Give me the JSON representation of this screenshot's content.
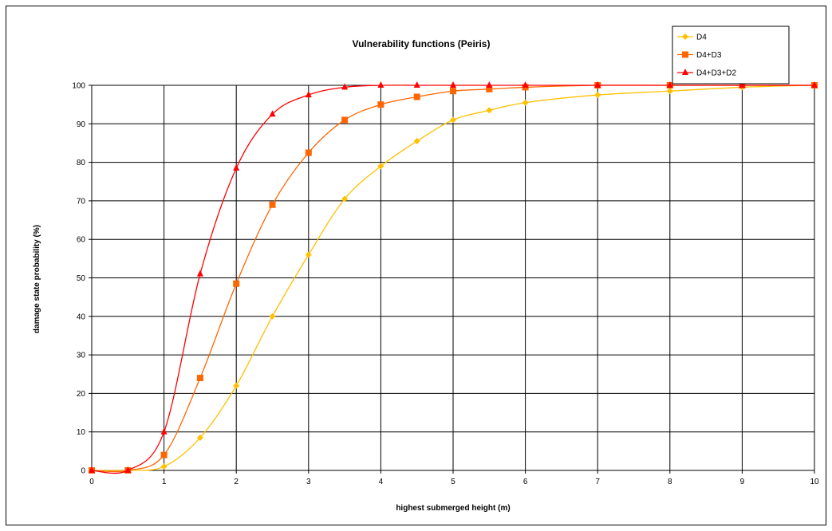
{
  "chart_data": {
    "type": "line",
    "title": "Vulnerability functions (Peiris)",
    "xlabel": "highest submerged height (m)",
    "ylabel": "damage state probability (%)",
    "xlim": [
      0,
      10
    ],
    "ylim": [
      0,
      100
    ],
    "xticks": [
      "0",
      "1",
      "2",
      "3",
      "4",
      "5",
      "6",
      "7",
      "8",
      "9",
      "10"
    ],
    "yticks": [
      "0",
      "10",
      "20",
      "30",
      "40",
      "50",
      "60",
      "70",
      "80",
      "90",
      "100"
    ],
    "grid": true,
    "legend_position": "top-right",
    "series": [
      {
        "name": "D4",
        "color": "#ffc000",
        "marker": "diamond",
        "x": [
          0,
          0.5,
          1,
          1.5,
          2,
          2.5,
          3,
          3.5,
          4,
          4.5,
          5,
          5.5,
          6,
          7,
          8,
          9,
          10
        ],
        "y": [
          0,
          0,
          1,
          8.5,
          22,
          40,
          56,
          70.5,
          79,
          85.5,
          91,
          93.5,
          95.5,
          97.5,
          98.5,
          99.5,
          100
        ]
      },
      {
        "name": "D4+D3",
        "color": "#ff6600",
        "marker": "square",
        "x": [
          0,
          0.5,
          1,
          1.5,
          2,
          2.5,
          3,
          3.5,
          4,
          4.5,
          5,
          5.5,
          6,
          7,
          8,
          9,
          10
        ],
        "y": [
          0,
          0,
          4,
          24,
          48.5,
          69,
          82.5,
          91,
          95,
          97,
          98.5,
          99,
          99.5,
          100,
          100,
          100,
          100
        ]
      },
      {
        "name": "D4+D3+D2",
        "color": "#ff0000",
        "marker": "triangle",
        "x": [
          0,
          0.5,
          1,
          1.5,
          2,
          2.5,
          3,
          3.5,
          4,
          4.5,
          5,
          5.5,
          6,
          7,
          8,
          9,
          10
        ],
        "y": [
          0,
          0,
          10,
          51,
          78.5,
          92.5,
          97.5,
          99.5,
          100,
          100,
          100,
          100,
          100,
          100,
          100,
          100,
          100
        ]
      }
    ]
  }
}
